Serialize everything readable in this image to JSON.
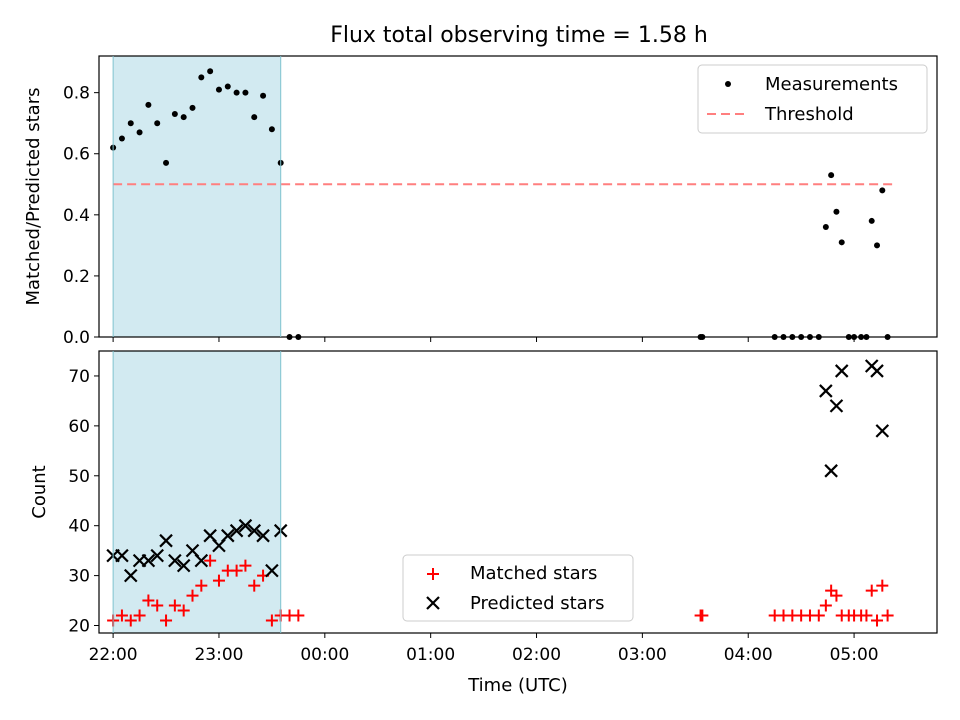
{
  "title": "Flux total observing time = 1.58 h",
  "colors": {
    "highlight": "#add8e6",
    "measurement": "#000000",
    "threshold": "#ff7f7f",
    "matched": "#ff0000",
    "predicted": "#000000"
  },
  "chart_data": [
    {
      "type": "scatter",
      "ylabel": "Matched/Predicted stars",
      "ylim": [
        0,
        0.92
      ],
      "yticks": [
        0.0,
        0.2,
        0.4,
        0.6,
        0.8
      ],
      "ytick_labels": [
        "0.0",
        "0.2",
        "0.4",
        "0.6",
        "0.8"
      ],
      "xlim": [
        "21:52",
        "05:47"
      ],
      "highlight_span": [
        "22:00",
        "23:35"
      ],
      "legend": {
        "position": "top-right",
        "entries": [
          "Measurements",
          "Threshold"
        ]
      },
      "threshold": {
        "name": "Threshold",
        "value": 0.5,
        "x": [
          "22:00",
          "05:23"
        ]
      },
      "series": [
        {
          "name": "Measurements",
          "marker": "dot",
          "x": [
            "22:00",
            "22:05",
            "22:10",
            "22:15",
            "22:20",
            "22:25",
            "22:30",
            "22:35",
            "22:40",
            "22:45",
            "22:50",
            "22:55",
            "23:00",
            "23:05",
            "23:10",
            "23:15",
            "23:20",
            "23:25",
            "23:30",
            "23:35",
            "23:40",
            "23:45",
            "03:33",
            "03:34",
            "04:15",
            "04:20",
            "04:25",
            "04:30",
            "04:35",
            "04:40",
            "04:44",
            "04:47",
            "04:50",
            "04:53",
            "04:57",
            "05:00",
            "05:04",
            "05:07",
            "05:10",
            "05:13",
            "05:16",
            "05:19"
          ],
          "y": [
            0.62,
            0.65,
            0.7,
            0.67,
            0.76,
            0.7,
            0.57,
            0.73,
            0.72,
            0.75,
            0.85,
            0.87,
            0.81,
            0.82,
            0.8,
            0.8,
            0.72,
            0.79,
            0.68,
            0.57,
            0.0,
            0.0,
            0.0,
            0.0,
            0.0,
            0.0,
            0.0,
            0.0,
            0.0,
            0.0,
            0.36,
            0.53,
            0.41,
            0.31,
            0.0,
            0.0,
            0.0,
            0.0,
            0.38,
            0.3,
            0.48,
            0.0
          ]
        }
      ]
    },
    {
      "type": "scatter",
      "xlabel": "Time (UTC)",
      "ylabel": "Count",
      "ylim": [
        18.5,
        75
      ],
      "yticks": [
        20,
        30,
        40,
        50,
        60,
        70
      ],
      "ytick_labels": [
        "20",
        "30",
        "40",
        "50",
        "60",
        "70"
      ],
      "xlim": [
        "21:52",
        "05:47"
      ],
      "xticks": [
        "22:00",
        "23:00",
        "00:00",
        "01:00",
        "02:00",
        "03:00",
        "04:00",
        "05:00"
      ],
      "xtick_labels": [
        "22:00",
        "23:00",
        "00:00",
        "01:00",
        "02:00",
        "03:00",
        "04:00",
        "05:00"
      ],
      "highlight_span": [
        "22:00",
        "23:35"
      ],
      "legend": {
        "position": "lower-center",
        "entries": [
          "Matched stars",
          "Predicted stars"
        ]
      },
      "series": [
        {
          "name": "Matched stars",
          "marker": "plus",
          "x": [
            "22:00",
            "22:05",
            "22:10",
            "22:15",
            "22:20",
            "22:25",
            "22:30",
            "22:35",
            "22:40",
            "22:45",
            "22:50",
            "22:55",
            "23:00",
            "23:05",
            "23:10",
            "23:15",
            "23:20",
            "23:25",
            "23:30",
            "23:35",
            "23:40",
            "23:45",
            "03:33",
            "03:34",
            "04:15",
            "04:20",
            "04:25",
            "04:30",
            "04:35",
            "04:40",
            "04:44",
            "04:47",
            "04:50",
            "04:53",
            "04:57",
            "05:00",
            "05:04",
            "05:07",
            "05:10",
            "05:13",
            "05:16",
            "05:19"
          ],
          "y": [
            21,
            22,
            21,
            22,
            25,
            24,
            21,
            24,
            23,
            26,
            28,
            33,
            29,
            31,
            31,
            32,
            28,
            30,
            21,
            22,
            22,
            22,
            22,
            22,
            22,
            22,
            22,
            22,
            22,
            22,
            24,
            27,
            26,
            22,
            22,
            22,
            22,
            22,
            27,
            21,
            28,
            22
          ]
        },
        {
          "name": "Predicted stars",
          "marker": "x",
          "x": [
            "22:00",
            "22:05",
            "22:10",
            "22:15",
            "22:20",
            "22:25",
            "22:30",
            "22:35",
            "22:40",
            "22:45",
            "22:50",
            "22:55",
            "23:00",
            "23:05",
            "23:10",
            "23:15",
            "23:20",
            "23:25",
            "23:30",
            "23:35",
            "04:44",
            "04:47",
            "04:50",
            "04:53",
            "05:10",
            "05:13",
            "05:16"
          ],
          "y": [
            34,
            34,
            30,
            33,
            33,
            34,
            37,
            33,
            32,
            35,
            33,
            38,
            36,
            38,
            39,
            40,
            39,
            38,
            31,
            39,
            67,
            51,
            64,
            71,
            72,
            71,
            59
          ]
        }
      ]
    }
  ]
}
